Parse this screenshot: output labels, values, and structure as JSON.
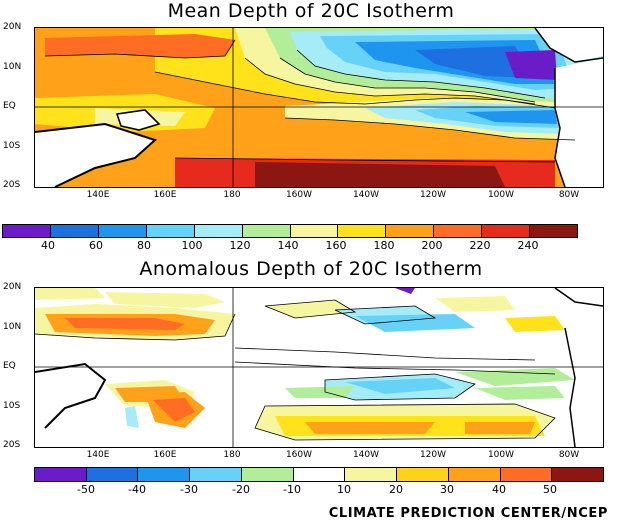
{
  "mean_panel": {
    "title": "Mean Depth of 20C Isotherm",
    "lat_labels": [
      "20N",
      "10N",
      "EQ",
      "10S",
      "20S"
    ],
    "lon_labels": [
      "140E",
      "160E",
      "180",
      "160W",
      "140W",
      "120W",
      "100W",
      "80W"
    ],
    "colorbar": {
      "labels": [
        "40",
        "60",
        "80",
        "100",
        "120",
        "140",
        "160",
        "180",
        "200",
        "220",
        "240"
      ],
      "colors": [
        "#6a1cc8",
        "#1e6fe0",
        "#1e96f0",
        "#66d2f8",
        "#a6ecf6",
        "#b2ee9a",
        "#f6f6a0",
        "#ffe21a",
        "#ffa21a",
        "#ff6d24",
        "#e62a1e",
        "#8c1612"
      ]
    }
  },
  "anomaly_panel": {
    "title": "Anomalous Depth of 20C Isotherm",
    "lat_labels": [
      "20N",
      "10N",
      "EQ",
      "10S",
      "20S"
    ],
    "lon_labels": [
      "140E",
      "160E",
      "180",
      "160W",
      "140W",
      "120W",
      "100W",
      "80W"
    ],
    "colorbar": {
      "labels": [
        "-50",
        "-40",
        "-30",
        "-20",
        "-10",
        "10",
        "20",
        "30",
        "40",
        "50"
      ],
      "colors": [
        "#6a1cc8",
        "#1e6fe0",
        "#1e96f0",
        "#66d2f8",
        "#b2ee9a",
        "#ffffff",
        "#f6f6a0",
        "#ffd21a",
        "#ffa21a",
        "#ff6d24",
        "#8c1612"
      ]
    }
  },
  "credit": "CLIMATE PREDICTION CENTER/NCEP"
}
